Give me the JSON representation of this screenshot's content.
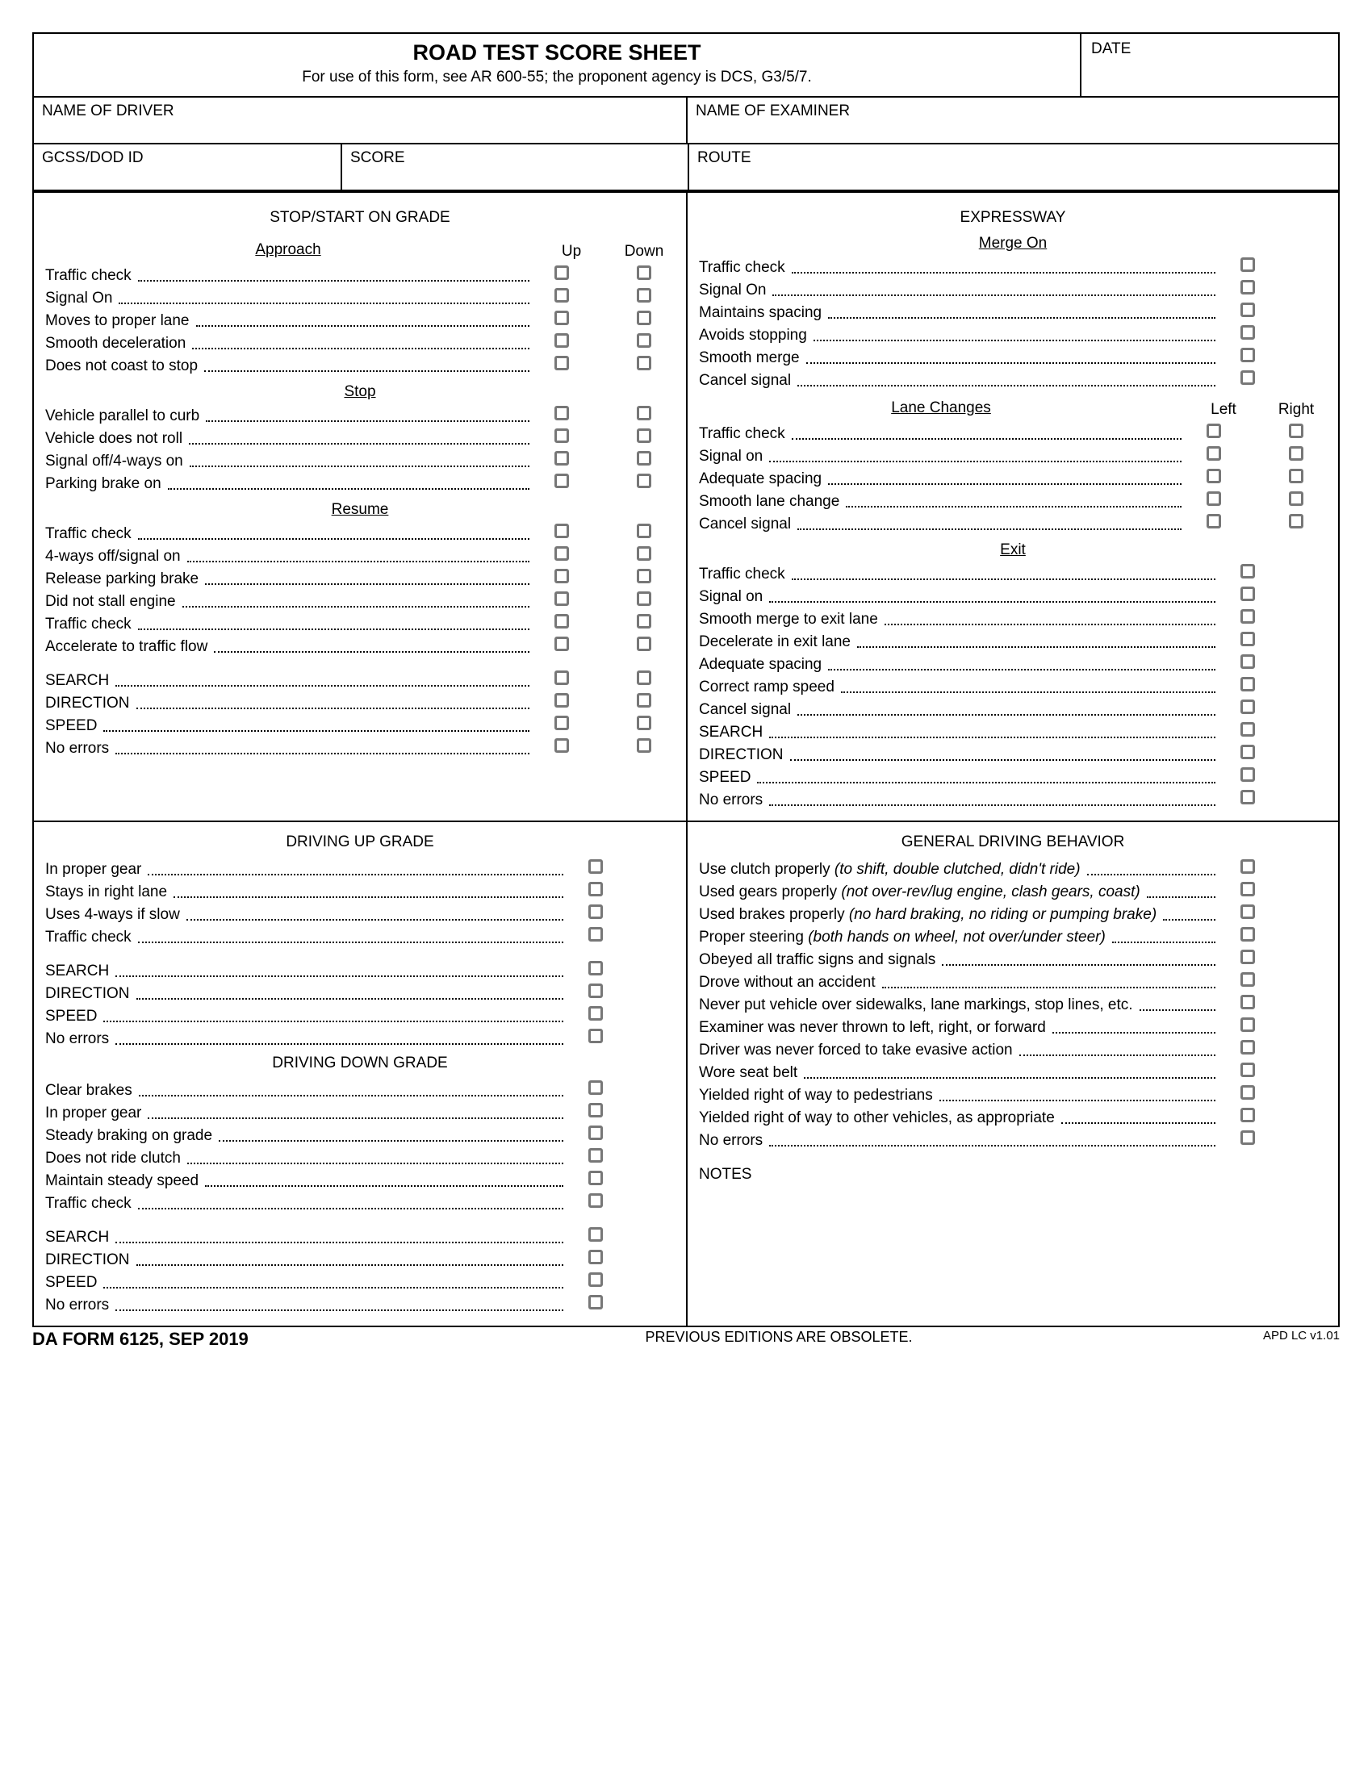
{
  "header": {
    "title": "ROAD TEST SCORE SHEET",
    "subtitle": "For use of this form, see AR 600-55; the proponent agency is DCS, G3/5/7.",
    "date_label": "DATE"
  },
  "info": {
    "driver_label": "NAME OF DRIVER",
    "examiner_label": "NAME OF EXAMINER",
    "gcss_label": "GCSS/DOD ID",
    "score_label": "SCORE",
    "route_label": "ROUTE"
  },
  "cols": {
    "up": "Up",
    "down": "Down",
    "left": "Left",
    "right": "Right"
  },
  "sections": {
    "stop_start": {
      "title": "STOP/START ON GRADE",
      "approach": {
        "title": "Approach",
        "items": [
          "Traffic check",
          "Signal On",
          "Moves to proper lane",
          "Smooth deceleration",
          "Does not coast to stop"
        ]
      },
      "stop": {
        "title": "Stop",
        "items": [
          "Vehicle parallel to curb",
          "Vehicle does not roll",
          "Signal off/4-ways on",
          "Parking brake on"
        ]
      },
      "resume": {
        "title": "Resume",
        "items": [
          "Traffic check",
          "4-ways off/signal on",
          "Release parking brake",
          "Did not stall engine",
          "Traffic check",
          "Accelerate to traffic flow"
        ]
      },
      "summary": [
        "SEARCH",
        "DIRECTION",
        "SPEED",
        "No errors"
      ]
    },
    "expressway": {
      "title": "EXPRESSWAY",
      "merge": {
        "title": "Merge On",
        "items": [
          "Traffic check",
          "Signal On",
          "Maintains spacing",
          "Avoids stopping",
          "Smooth merge",
          "Cancel signal"
        ]
      },
      "lane": {
        "title": "Lane Changes",
        "items": [
          "Traffic check",
          "Signal on",
          "Adequate spacing",
          "Smooth lane change",
          "Cancel signal"
        ]
      },
      "exit": {
        "title": "Exit",
        "items": [
          "Traffic check",
          "Signal on",
          "Smooth merge to exit lane",
          "Decelerate in exit lane",
          "Adequate spacing",
          "Correct ramp speed",
          "Cancel signal",
          "SEARCH",
          "DIRECTION",
          "SPEED",
          "No errors"
        ]
      }
    },
    "up_grade": {
      "title": "DRIVING UP GRADE",
      "items": [
        "In proper gear",
        "Stays in right lane",
        "Uses 4-ways if slow",
        "Traffic check"
      ],
      "summary": [
        "SEARCH",
        "DIRECTION",
        "SPEED",
        "No errors"
      ]
    },
    "down_grade": {
      "title": "DRIVING DOWN GRADE",
      "items": [
        "Clear brakes",
        "In proper gear",
        "Steady braking on grade",
        "Does not ride clutch",
        "Maintain steady speed",
        "Traffic check"
      ],
      "summary": [
        "SEARCH",
        "DIRECTION",
        "SPEED",
        "No errors"
      ]
    },
    "general": {
      "title": "GENERAL DRIVING BEHAVIOR",
      "items": [
        {
          "t": "Use clutch properly ",
          "i": "(to shift, double clutched, didn't ride)"
        },
        {
          "t": "Used gears properly ",
          "i": "(not over-rev/lug engine, clash gears, coast)"
        },
        {
          "t": "Used brakes properly ",
          "i": "(no hard braking, no riding or pumping brake)"
        },
        {
          "t": "Proper steering ",
          "i": "(both hands on wheel, not over/under steer)"
        },
        {
          "t": "Obeyed all traffic signs and signals",
          "i": ""
        },
        {
          "t": "Drove without an accident",
          "i": ""
        },
        {
          "t": "Never put vehicle over sidewalks, lane markings, stop lines, etc.",
          "i": ""
        },
        {
          "t": "Examiner was never thrown to left, right, or forward",
          "i": ""
        },
        {
          "t": "Driver was never forced to take evasive action",
          "i": ""
        },
        {
          "t": "Wore seat belt",
          "i": ""
        },
        {
          "t": "Yielded right of way to pedestrians",
          "i": ""
        },
        {
          "t": "Yielded right of way to other vehicles, as appropriate",
          "i": ""
        },
        {
          "t": "No errors",
          "i": ""
        }
      ],
      "notes_label": "NOTES"
    }
  },
  "footer": {
    "form": "DA FORM 6125, SEP 2019",
    "obsolete": "PREVIOUS EDITIONS ARE OBSOLETE.",
    "version": "APD LC v1.01"
  }
}
